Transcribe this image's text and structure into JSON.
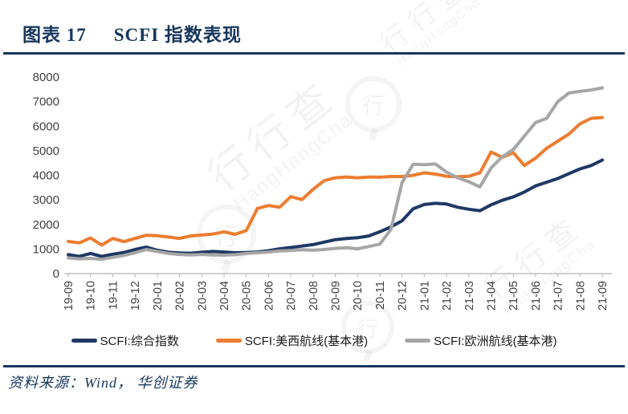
{
  "figure": {
    "label": "图表 17",
    "title": "SCFI 指数表现",
    "source": "资料来源：Wind， 华创证券"
  },
  "watermark": {
    "cn": "行行查",
    "en": "HangHangCha",
    "logo_char": "行"
  },
  "colors": {
    "navy": "#1F3864",
    "orange": "#ED7D31",
    "gray": "#A6A6A6",
    "title_navy": "#17375E",
    "axis_text": "#404040",
    "axis_line": "#BFBFBF"
  },
  "chart_data": {
    "type": "line",
    "title": "SCFI 指数表现",
    "xlabel": "",
    "ylabel": "",
    "x_start": "2019-09",
    "x_end": "2021-09",
    "frequency": "semi-monthly",
    "grid": false,
    "legend_position": "bottom",
    "ylim": [
      0,
      8000
    ],
    "y_ticks": [
      0,
      1000,
      2000,
      3000,
      4000,
      5000,
      6000,
      7000,
      8000
    ],
    "x_tick_labels": [
      "19-09",
      "19-10",
      "19-11",
      "19-12",
      "20-01",
      "20-02",
      "20-03",
      "20-04",
      "20-05",
      "20-06",
      "20-07",
      "20-08",
      "20-09",
      "20-10",
      "20-11",
      "20-12",
      "21-01",
      "21-02",
      "21-03",
      "21-04",
      "21-05",
      "21-06",
      "21-07",
      "21-08",
      "21-09"
    ],
    "series": [
      {
        "name": "SCFI:综合指数",
        "color_key": "navy",
        "values": [
          770,
          700,
          820,
          700,
          790,
          860,
          980,
          1080,
          950,
          870,
          840,
          830,
          870,
          900,
          880,
          850,
          860,
          880,
          930,
          1010,
          1060,
          1120,
          1180,
          1280,
          1380,
          1430,
          1460,
          1530,
          1700,
          1900,
          2150,
          2640,
          2810,
          2860,
          2830,
          2700,
          2620,
          2560,
          2800,
          2980,
          3120,
          3320,
          3570,
          3720,
          3870,
          4070,
          4260,
          4400,
          4620
        ]
      },
      {
        "name": "SCFI:美西航线(基本港)",
        "color_key": "orange",
        "values": [
          1310,
          1250,
          1450,
          1160,
          1430,
          1300,
          1430,
          1560,
          1540,
          1490,
          1430,
          1530,
          1570,
          1610,
          1700,
          1600,
          1750,
          2650,
          2770,
          2700,
          3130,
          3010,
          3430,
          3780,
          3900,
          3930,
          3900,
          3930,
          3920,
          3950,
          3950,
          4000,
          4100,
          4050,
          3960,
          3940,
          3960,
          4100,
          4950,
          4730,
          4920,
          4400,
          4700,
          5100,
          5390,
          5680,
          6100,
          6320,
          6350
        ]
      },
      {
        "name": "SCFI:欧洲航线(基本港)",
        "color_key": "gray",
        "values": [
          640,
          600,
          620,
          580,
          660,
          740,
          850,
          980,
          900,
          820,
          780,
          760,
          780,
          760,
          750,
          770,
          820,
          850,
          880,
          920,
          940,
          970,
          950,
          980,
          1030,
          1050,
          1010,
          1100,
          1200,
          1800,
          3700,
          4450,
          4430,
          4460,
          4130,
          3900,
          3740,
          3530,
          4300,
          4750,
          5050,
          5600,
          6150,
          6320,
          7000,
          7350,
          7420,
          7470,
          7560
        ]
      }
    ]
  }
}
